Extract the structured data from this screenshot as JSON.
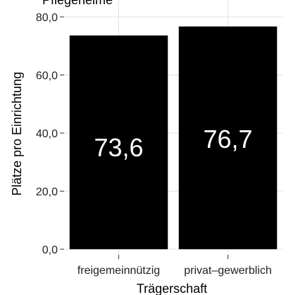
{
  "chart_data": {
    "type": "bar",
    "title": "",
    "top_text": "Pflegeheime",
    "xlabel": "Trägerschaft",
    "ylabel": "Plätze pro Einrichtung",
    "categories": [
      "freigemeinnützig",
      "privat–gewerblich"
    ],
    "values": [
      73.6,
      76.7
    ],
    "data_labels": [
      "73,6",
      "76,7"
    ],
    "y_tick_labels": [
      "0,0",
      "20,0",
      "40,0",
      "60,0",
      "80,0"
    ],
    "y_ticks": [
      0,
      20,
      40,
      60,
      80
    ],
    "ylim": [
      0,
      82
    ],
    "grid": true,
    "bar_color": "#000000",
    "grid_color": "#e3e3e3"
  }
}
